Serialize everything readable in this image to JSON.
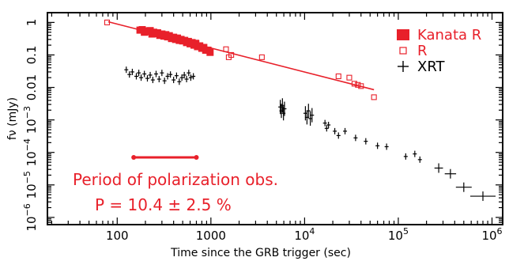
{
  "chart_data": {
    "type": "scatter",
    "xlabel": "Time since the GRB trigger (sec)",
    "ylabel": "fν (mJy)",
    "x_scale": "log",
    "y_scale": "log",
    "xlim": [
      18,
      1300000
    ],
    "ylim": [
      6e-07,
      2
    ],
    "x_ticks": [
      {
        "value": 100,
        "label": "100"
      },
      {
        "value": 1000,
        "label": "1000"
      },
      {
        "value": 10000,
        "label": "10",
        "sup": "4"
      },
      {
        "value": 100000,
        "label": "10",
        "sup": "5"
      },
      {
        "value": 1000000,
        "label": "10",
        "sup": "6"
      }
    ],
    "y_ticks": [
      {
        "value": 1,
        "label": "1",
        "sup": ""
      },
      {
        "value": 0.1,
        "label": "0.1",
        "sup": ""
      },
      {
        "value": 0.01,
        "label": "0.01",
        "sup": ""
      },
      {
        "value": 0.001,
        "label": "10",
        "sup": "−3"
      },
      {
        "value": 0.0001,
        "label": "10",
        "sup": "−4"
      },
      {
        "value": 1e-05,
        "label": "10",
        "sup": "−5"
      },
      {
        "value": 1e-06,
        "label": "10",
        "sup": "−6"
      }
    ],
    "legend_position": "top-right",
    "legend": [
      {
        "marker": "filled-square",
        "label": "Kanata R",
        "color": "#e8202a"
      },
      {
        "marker": "open-square",
        "label": "R",
        "color": "#e8202a"
      },
      {
        "marker": "cross",
        "label": "XRT",
        "color": "#000000"
      }
    ],
    "annotation": {
      "line1": "Period of polarization obs.",
      "line2": "P = 10.4 ± 2.5 %",
      "color": "#e8202a",
      "period_start": 150,
      "period_end": 700
    },
    "fit_line": {
      "x": [
        80,
        55000
      ],
      "y": [
        1.05,
        0.0085
      ],
      "color": "#e8202a"
    },
    "series": [
      {
        "name": "Kanata R",
        "marker": "filled-square",
        "color": "#e8202a",
        "x": [
          175,
          185,
          195,
          205,
          215,
          225,
          235,
          245,
          258,
          270,
          285,
          300,
          315,
          330,
          345,
          360,
          380,
          400,
          420,
          440,
          460,
          480,
          500,
          525,
          550,
          575,
          600,
          630,
          660,
          690,
          720,
          760,
          800,
          840,
          880,
          930,
          980
        ],
        "y": [
          0.58,
          0.6,
          0.5,
          0.55,
          0.52,
          0.56,
          0.44,
          0.5,
          0.45,
          0.48,
          0.4,
          0.44,
          0.38,
          0.42,
          0.36,
          0.39,
          0.32,
          0.35,
          0.3,
          0.33,
          0.28,
          0.3,
          0.27,
          0.28,
          0.24,
          0.26,
          0.22,
          0.24,
          0.2,
          0.22,
          0.18,
          0.19,
          0.16,
          0.17,
          0.14,
          0.14,
          0.12
        ]
      },
      {
        "name": "R",
        "marker": "open-square",
        "color": "#e8202a",
        "x": [
          78,
          700,
          1450,
          1550,
          1650,
          3500,
          23000,
          30000,
          34000,
          37000,
          40000,
          55000
        ],
        "y": [
          1.0,
          0.24,
          0.15,
          0.085,
          0.1,
          0.085,
          0.022,
          0.02,
          0.013,
          0.012,
          0.011,
          0.005
        ]
      },
      {
        "name": "XRT",
        "marker": "cross",
        "color": "#000000",
        "x": [
          125,
          135,
          145,
          160,
          170,
          180,
          195,
          210,
          225,
          240,
          260,
          280,
          300,
          320,
          345,
          370,
          400,
          430,
          460,
          490,
          520,
          550,
          580,
          610,
          650,
          5500,
          5650,
          5800,
          5950,
          6100,
          10200,
          10600,
          11000,
          11500,
          12000,
          16500,
          17200,
          18000,
          21000,
          23000,
          27000,
          35000,
          45000,
          60000,
          75000,
          120000,
          150000,
          170000,
          270000,
          360000,
          500000,
          800000
        ],
        "y": [
          0.035,
          0.025,
          0.03,
          0.022,
          0.028,
          0.02,
          0.026,
          0.019,
          0.024,
          0.017,
          0.026,
          0.018,
          0.028,
          0.016,
          0.022,
          0.025,
          0.017,
          0.023,
          0.015,
          0.02,
          0.024,
          0.018,
          0.028,
          0.02,
          0.022,
          0.0025,
          0.0019,
          0.0028,
          0.0016,
          0.0022,
          0.0016,
          0.0012,
          0.0019,
          0.0011,
          0.0014,
          0.0008,
          0.00055,
          0.0007,
          0.00045,
          0.00033,
          0.00045,
          0.00028,
          0.00022,
          0.00016,
          0.00015,
          7.5e-05,
          9e-05,
          6e-05,
          3.3e-05,
          2.2e-05,
          8.5e-06,
          4.5e-06
        ]
      }
    ]
  }
}
